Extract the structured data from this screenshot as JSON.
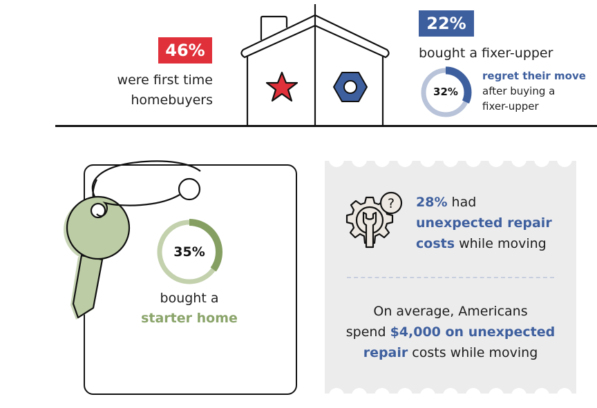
{
  "top_left": {
    "badge": "46%",
    "badge_color": "#e0303a",
    "line1": "were first time",
    "line2": "homebuyers"
  },
  "house": {
    "left_icon": "star-icon",
    "left_icon_color": "#e0303a",
    "right_icon": "hex-nut-icon",
    "right_icon_color": "#3e5f9e"
  },
  "top_right": {
    "badge": "22%",
    "badge_color": "#3e5f9e",
    "caption": "bought a fixer-upper",
    "donut": {
      "value": 32,
      "label": "32%",
      "color": "#3e5f9e",
      "track_color": "#b8c3d9"
    },
    "regret_bold": "regret their move",
    "regret_line2": "after buying a",
    "regret_line3": "fixer-upper"
  },
  "starter_card": {
    "donut": {
      "value": 35,
      "label": "35%",
      "color": "#859f62",
      "track_color": "#c3d1ad"
    },
    "line1": "bought a",
    "line2": "starter home",
    "key_color": "#bccca4"
  },
  "repair_card": {
    "background": "#ececed",
    "icon": "gear-wrench-question-icon",
    "stat_pct": "28%",
    "stat_had": " had",
    "stat_bold2": "unexpected repair",
    "stat_bold3": "costs",
    "stat_rest3": " while moving",
    "avg_line1": "On average, Americans",
    "avg_spend": "spend ",
    "avg_bold2": "$4,000 on unexpected",
    "avg_bold3": "repair",
    "avg_rest3": " costs while moving"
  }
}
